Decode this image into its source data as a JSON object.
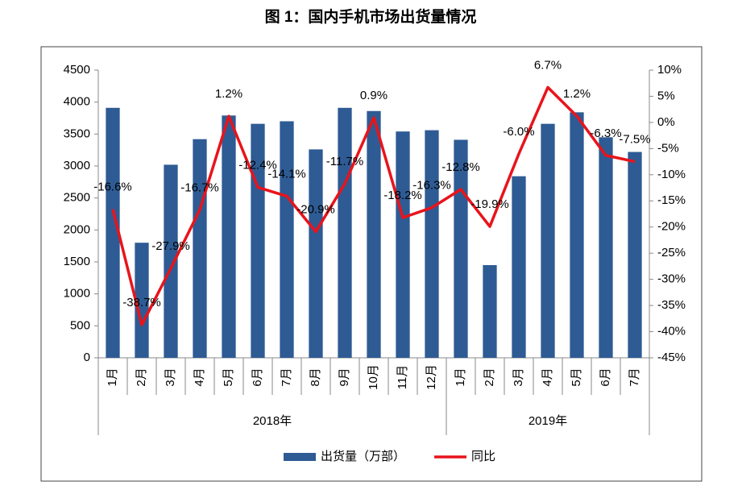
{
  "chart_data": {
    "type": "bar_line",
    "title": "图 1：国内手机市场出货量情况",
    "groups": [
      {
        "name": "2018年",
        "categories": [
          "1月",
          "2月",
          "3月",
          "4月",
          "5月",
          "6月",
          "7月",
          "8月",
          "9月",
          "10月",
          "11月",
          "12月"
        ]
      },
      {
        "name": "2019年",
        "categories": [
          "1月",
          "2月",
          "3月",
          "4月",
          "5月",
          "6月",
          "7月"
        ]
      }
    ],
    "series": [
      {
        "name": "出货量（万部）",
        "type": "bar",
        "color": "#2e5b94",
        "values": [
          3910,
          1800,
          3020,
          3420,
          3790,
          3660,
          3700,
          3260,
          3910,
          3860,
          3540,
          3560,
          3410,
          1450,
          2840,
          3660,
          3840,
          3450,
          3220
        ]
      },
      {
        "name": "同比",
        "type": "line",
        "axis": "y2",
        "color": "#e8141b",
        "values": [
          -16.6,
          -38.7,
          -27.9,
          -16.7,
          1.2,
          -12.4,
          -14.1,
          -20.9,
          -11.7,
          0.9,
          -18.2,
          -16.3,
          -12.8,
          -19.9,
          -6.0,
          6.7,
          1.2,
          -6.3,
          -7.5
        ],
        "value_labels": [
          "-16.6%",
          "-38.7%",
          "-27.9%",
          "-16.7%",
          "1.2%",
          "-12.4%",
          "-14.1%",
          "-20.9%",
          "-11.7%",
          "0.9%",
          "-18.2%",
          "-16.3%",
          "-12.8%",
          "-19.9%",
          "-6.0%",
          "6.7%",
          "1.2%",
          "-6.3%",
          "-7.5%"
        ]
      }
    ],
    "ylim": [
      0,
      4500
    ],
    "yticks": [
      0,
      500,
      1000,
      1500,
      2000,
      2500,
      3000,
      3500,
      4000,
      4500
    ],
    "y2lim": [
      -45,
      10
    ],
    "y2ticks": [
      {
        "value": -45,
        "label": "-45%"
      },
      {
        "value": -40,
        "label": "-40%"
      },
      {
        "value": -35,
        "label": "-35%"
      },
      {
        "value": -30,
        "label": "-30%"
      },
      {
        "value": -25,
        "label": "-25%"
      },
      {
        "value": -20,
        "label": "-20%"
      },
      {
        "value": -15,
        "label": "-15%"
      },
      {
        "value": -10,
        "label": "-10%"
      },
      {
        "value": -5,
        "label": "-5%"
      },
      {
        "value": 0,
        "label": "0%"
      },
      {
        "value": 5,
        "label": "5%"
      },
      {
        "value": 10,
        "label": "10%"
      }
    ],
    "grid": false,
    "legend": "bottom"
  }
}
